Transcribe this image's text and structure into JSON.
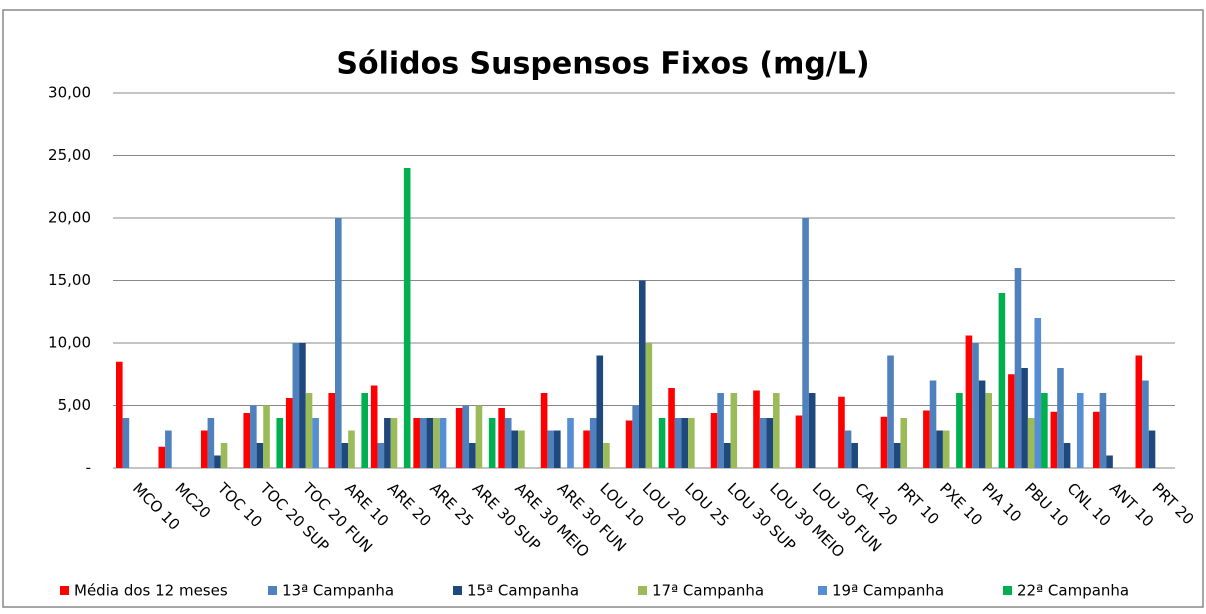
{
  "chart_data": {
    "type": "bar",
    "title": "Sólidos Suspensos Fixos (mg/L)",
    "categories": [
      "MCO 10",
      "MC20",
      "TOC 10",
      "TOC 20 SUP",
      "TOC 20 FUN",
      "ARE 10",
      "ARE 20",
      "ARE 25",
      "ARE 30 SUP",
      "ARE 30 MEIO",
      "ARE 30 FUN",
      "LOU 10",
      "LOU 20",
      "LOU 25",
      "LOU 30 SUP",
      "LOU 30 MEIO",
      "LOU 30 FUN",
      "CAL 20",
      "PRT 10",
      "PXE 10",
      "PIA 10",
      "PBU 10",
      "CNL 10",
      "ANT 10",
      "PRT 20"
    ],
    "series": [
      {
        "name": "Média dos 12 meses",
        "color": "#ff0000",
        "values": [
          8.5,
          1.7,
          3,
          4.4,
          5.6,
          6,
          6.6,
          4,
          4.8,
          4.8,
          6,
          3,
          3.8,
          6.4,
          4.4,
          6.2,
          4.2,
          5.7,
          4.1,
          4.6,
          10.6,
          7.5,
          4.5,
          4.5,
          9
        ]
      },
      {
        "name": "13ª Campanha",
        "color": "#4f81bd",
        "values": [
          4,
          3,
          4,
          5,
          10,
          20,
          2,
          4,
          5,
          4,
          3,
          4,
          5,
          4,
          6,
          4,
          20,
          3,
          9,
          7,
          10,
          16,
          8,
          6,
          7
        ]
      },
      {
        "name": "15ª Campanha",
        "color": "#1f497d",
        "values": [
          null,
          null,
          1,
          2,
          10,
          2,
          4,
          4,
          2,
          3,
          3,
          9,
          15,
          4,
          2,
          4,
          6,
          2,
          2,
          3,
          7,
          8,
          2,
          1,
          3
        ]
      },
      {
        "name": "17ª Campanha",
        "color": "#9bbb59",
        "values": [
          null,
          null,
          2,
          5,
          6,
          3,
          4,
          4,
          5,
          3,
          null,
          2,
          10,
          4,
          6,
          6,
          null,
          null,
          4,
          3,
          6,
          4,
          null,
          null,
          null
        ]
      },
      {
        "name": "19ª Campanha",
        "color": "#558ed5",
        "values": [
          null,
          null,
          null,
          null,
          4,
          null,
          null,
          4,
          null,
          null,
          4,
          null,
          null,
          null,
          null,
          null,
          null,
          null,
          null,
          null,
          null,
          12,
          6,
          null,
          null
        ]
      },
      {
        "name": "22ª Campanha",
        "color": "#00b050",
        "values": [
          null,
          null,
          null,
          4,
          null,
          6,
          24,
          null,
          4,
          null,
          null,
          null,
          4,
          null,
          null,
          null,
          null,
          null,
          null,
          6,
          14,
          6,
          null,
          null,
          null
        ]
      }
    ],
    "ylim": [
      0,
      30
    ],
    "yticks": [
      {
        "value": 0,
        "label": "-"
      },
      {
        "value": 5,
        "label": "5,00"
      },
      {
        "value": 10,
        "label": "10,00"
      },
      {
        "value": 15,
        "label": "15,00"
      },
      {
        "value": 20,
        "label": "20,00"
      },
      {
        "value": 25,
        "label": "25,00"
      },
      {
        "value": 30,
        "label": "30,00"
      }
    ],
    "grid": true
  }
}
